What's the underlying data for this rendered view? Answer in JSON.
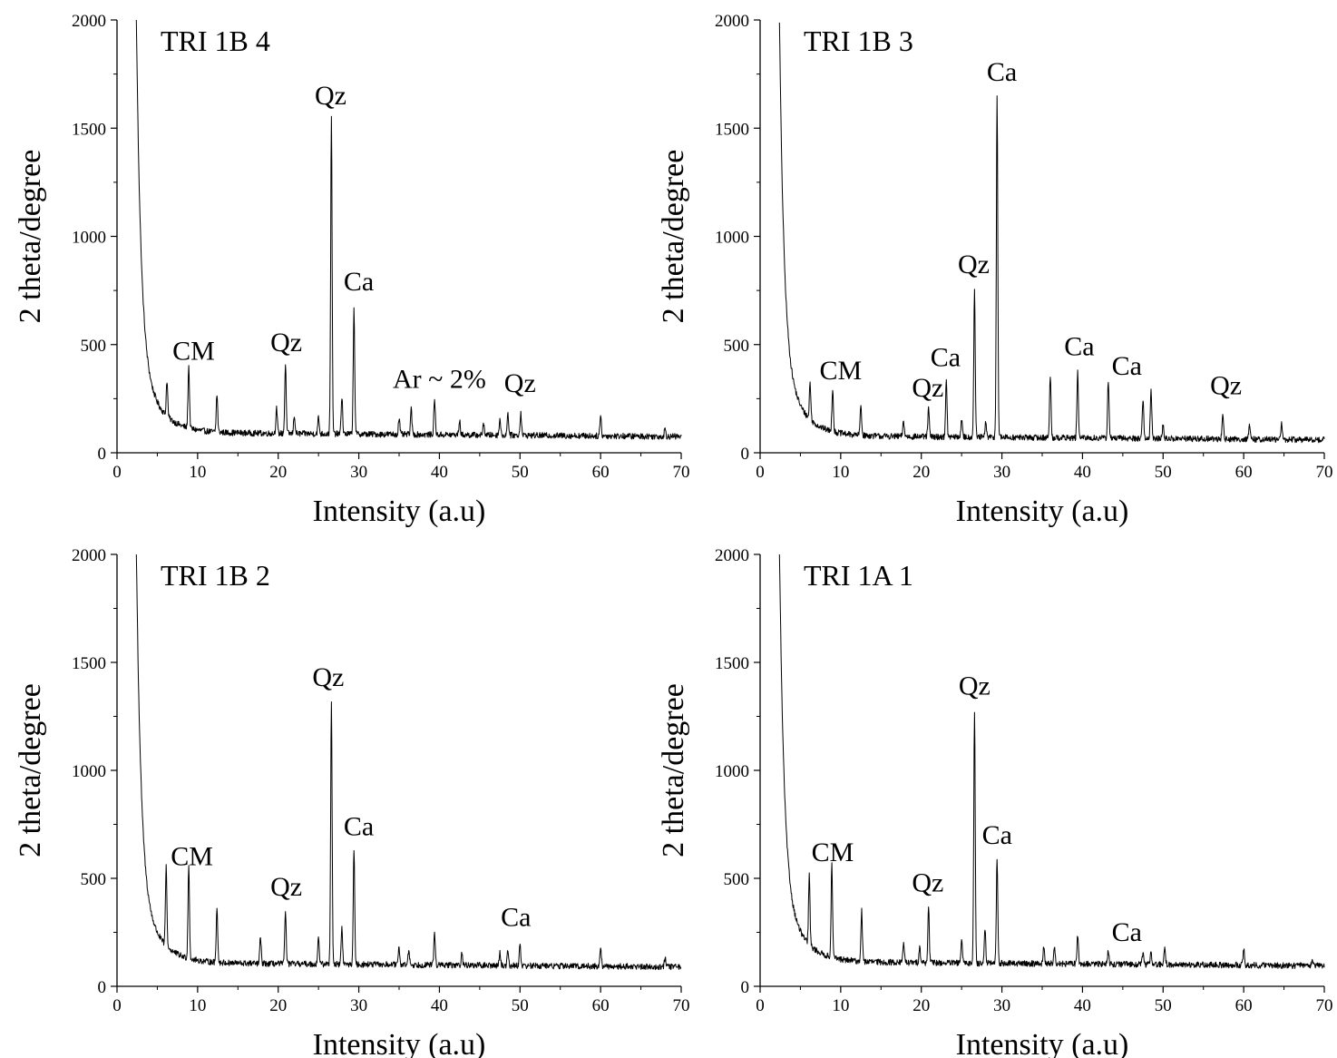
{
  "chart_data": [
    {
      "type": "line",
      "title": "TRI 1B 4",
      "xlabel": "Intensity (a.u)",
      "ylabel": "2 theta/degree",
      "xlim": [
        0,
        70
      ],
      "ylim": [
        0,
        2000
      ],
      "xticks": [
        "0",
        "10",
        "20",
        "30",
        "40",
        "50",
        "60",
        "70"
      ],
      "yticks": [
        "0",
        "500",
        "1000",
        "1500",
        "2000"
      ],
      "grid": false,
      "background": 95,
      "peaks": [
        {
          "x": 6.2,
          "y": 260
        },
        {
          "x": 8.9,
          "y": 380
        },
        {
          "x": 12.4,
          "y": 270
        },
        {
          "x": 19.8,
          "y": 210
        },
        {
          "x": 20.9,
          "y": 415
        },
        {
          "x": 22.0,
          "y": 180
        },
        {
          "x": 25.0,
          "y": 170
        },
        {
          "x": 26.6,
          "y": 1550
        },
        {
          "x": 27.9,
          "y": 270
        },
        {
          "x": 29.4,
          "y": 680
        },
        {
          "x": 35.0,
          "y": 170
        },
        {
          "x": 36.5,
          "y": 210
        },
        {
          "x": 39.4,
          "y": 260
        },
        {
          "x": 42.5,
          "y": 160
        },
        {
          "x": 45.5,
          "y": 150
        },
        {
          "x": 47.5,
          "y": 170
        },
        {
          "x": 48.5,
          "y": 200
        },
        {
          "x": 50.1,
          "y": 200
        },
        {
          "x": 60.0,
          "y": 190
        },
        {
          "x": 68.0,
          "y": 130
        }
      ],
      "annotations": [
        {
          "text": "CM",
          "x": 9.5,
          "y": 430
        },
        {
          "text": "Qz",
          "x": 21.0,
          "y": 470
        },
        {
          "text": "Qz",
          "x": 26.5,
          "y": 1610
        },
        {
          "text": "Ca",
          "x": 30.0,
          "y": 750
        },
        {
          "text": "Ar ~ 2%",
          "x": 40.0,
          "y": 300
        },
        {
          "text": "Qz",
          "x": 50.0,
          "y": 280
        }
      ]
    },
    {
      "type": "line",
      "title": "TRI 1B 3",
      "xlabel": "Intensity (a.u)",
      "ylabel": "2 theta/degree",
      "xlim": [
        0,
        70
      ],
      "ylim": [
        0,
        2000
      ],
      "xticks": [
        "0",
        "10",
        "20",
        "30",
        "40",
        "50",
        "60",
        "70"
      ],
      "yticks": [
        "0",
        "500",
        "1000",
        "1500",
        "2000"
      ],
      "grid": false,
      "background": 80,
      "peaks": [
        {
          "x": 6.2,
          "y": 250
        },
        {
          "x": 9.0,
          "y": 280
        },
        {
          "x": 12.5,
          "y": 220
        },
        {
          "x": 17.8,
          "y": 150
        },
        {
          "x": 20.9,
          "y": 210
        },
        {
          "x": 23.1,
          "y": 340
        },
        {
          "x": 25.0,
          "y": 160
        },
        {
          "x": 26.6,
          "y": 760
        },
        {
          "x": 28.0,
          "y": 150
        },
        {
          "x": 29.4,
          "y": 1660
        },
        {
          "x": 36.0,
          "y": 370
        },
        {
          "x": 39.4,
          "y": 380
        },
        {
          "x": 43.2,
          "y": 350
        },
        {
          "x": 47.5,
          "y": 260
        },
        {
          "x": 48.5,
          "y": 310
        },
        {
          "x": 50.0,
          "y": 140
        },
        {
          "x": 57.4,
          "y": 200
        },
        {
          "x": 60.7,
          "y": 140
        },
        {
          "x": 64.7,
          "y": 150
        }
      ],
      "annotations": [
        {
          "text": "CM",
          "x": 10.0,
          "y": 340
        },
        {
          "text": "Qz",
          "x": 20.8,
          "y": 260
        },
        {
          "text": "Ca",
          "x": 23.0,
          "y": 400
        },
        {
          "text": "Qz",
          "x": 26.5,
          "y": 830
        },
        {
          "text": "Ca",
          "x": 30.0,
          "y": 1720
        },
        {
          "text": "Ca",
          "x": 39.6,
          "y": 450
        },
        {
          "text": "Ca",
          "x": 45.5,
          "y": 360
        },
        {
          "text": "Qz",
          "x": 57.8,
          "y": 270
        }
      ]
    },
    {
      "type": "line",
      "title": "TRI 1B 2",
      "xlabel": "Intensity (a.u)",
      "ylabel": "2 theta/degree",
      "xlim": [
        0,
        70
      ],
      "ylim": [
        0,
        2000
      ],
      "xticks": [
        "0",
        "10",
        "20",
        "30",
        "40",
        "50",
        "60",
        "70"
      ],
      "yticks": [
        "0",
        "500",
        "1000",
        "1500",
        "2000"
      ],
      "grid": false,
      "background": 110,
      "peaks": [
        {
          "x": 6.1,
          "y": 480
        },
        {
          "x": 8.9,
          "y": 540
        },
        {
          "x": 12.4,
          "y": 370
        },
        {
          "x": 17.8,
          "y": 230
        },
        {
          "x": 20.9,
          "y": 360
        },
        {
          "x": 25.0,
          "y": 240
        },
        {
          "x": 26.6,
          "y": 1330
        },
        {
          "x": 27.9,
          "y": 280
        },
        {
          "x": 29.4,
          "y": 640
        },
        {
          "x": 35.0,
          "y": 190
        },
        {
          "x": 36.2,
          "y": 180
        },
        {
          "x": 39.4,
          "y": 260
        },
        {
          "x": 42.8,
          "y": 170
        },
        {
          "x": 47.5,
          "y": 170
        },
        {
          "x": 48.5,
          "y": 180
        },
        {
          "x": 50.0,
          "y": 210
        },
        {
          "x": 60.0,
          "y": 190
        },
        {
          "x": 68.0,
          "y": 150
        }
      ],
      "annotations": [
        {
          "text": "CM",
          "x": 9.3,
          "y": 560
        },
        {
          "text": "Qz",
          "x": 21.0,
          "y": 420
        },
        {
          "text": "Qz",
          "x": 26.2,
          "y": 1390
        },
        {
          "text": "Ca",
          "x": 30.0,
          "y": 700
        },
        {
          "text": "Ca",
          "x": 49.5,
          "y": 280
        }
      ]
    },
    {
      "type": "line",
      "title": "TRI 1A 1",
      "xlabel": "Intensity (a.u)",
      "ylabel": "2 theta/degree",
      "xlim": [
        0,
        70
      ],
      "ylim": [
        0,
        2000
      ],
      "xticks": [
        "0",
        "10",
        "20",
        "30",
        "40",
        "50",
        "60",
        "70"
      ],
      "yticks": [
        "0",
        "500",
        "1000",
        "1500",
        "2000"
      ],
      "grid": false,
      "background": 115,
      "peaks": [
        {
          "x": 6.1,
          "y": 440
        },
        {
          "x": 8.9,
          "y": 540
        },
        {
          "x": 12.6,
          "y": 350
        },
        {
          "x": 17.8,
          "y": 210
        },
        {
          "x": 19.8,
          "y": 190
        },
        {
          "x": 20.9,
          "y": 370
        },
        {
          "x": 25.0,
          "y": 220
        },
        {
          "x": 26.6,
          "y": 1290
        },
        {
          "x": 27.9,
          "y": 280
        },
        {
          "x": 29.4,
          "y": 600
        },
        {
          "x": 35.2,
          "y": 190
        },
        {
          "x": 36.5,
          "y": 200
        },
        {
          "x": 39.4,
          "y": 250
        },
        {
          "x": 43.2,
          "y": 180
        },
        {
          "x": 47.5,
          "y": 170
        },
        {
          "x": 48.5,
          "y": 180
        },
        {
          "x": 50.2,
          "y": 190
        },
        {
          "x": 60.0,
          "y": 190
        },
        {
          "x": 68.5,
          "y": 150
        }
      ],
      "annotations": [
        {
          "text": "CM",
          "x": 9.0,
          "y": 580
        },
        {
          "text": "Qz",
          "x": 20.8,
          "y": 440
        },
        {
          "text": "Qz",
          "x": 26.6,
          "y": 1350
        },
        {
          "text": "Ca",
          "x": 29.4,
          "y": 660
        },
        {
          "text": "Ca",
          "x": 45.5,
          "y": 210
        }
      ]
    }
  ]
}
